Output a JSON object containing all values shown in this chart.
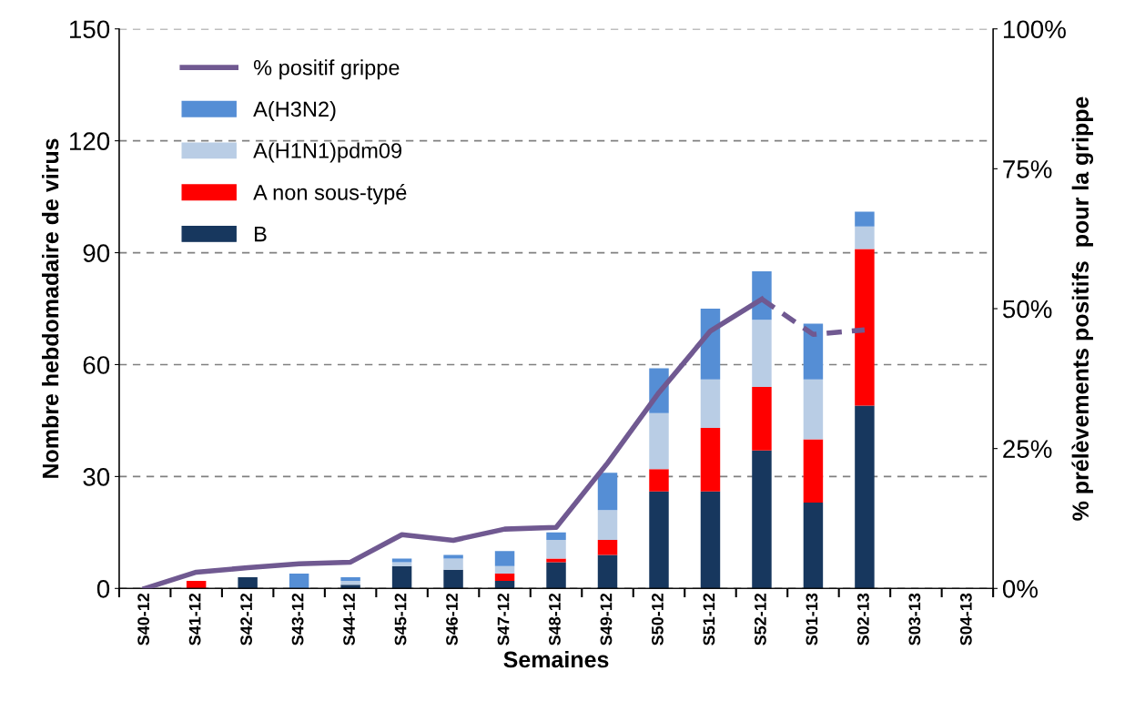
{
  "chart_data": {
    "type": "bar",
    "stacked": true,
    "xlabel": "Semaines",
    "ylabel": "Nombre hebdomadaire de virus",
    "y2label": "% prélèvements positifs  pour la grippe",
    "categories": [
      "S40-12",
      "S41-12",
      "S42-12",
      "S43-12",
      "S44-12",
      "S45-12",
      "S46-12",
      "S47-12",
      "S48-12",
      "S49-12",
      "S50-12",
      "S51-12",
      "S52-12",
      "S01-13",
      "S02-13",
      "S03-13",
      "S04-13"
    ],
    "series": [
      {
        "name": "B",
        "color": "#17375e",
        "values": [
          0,
          0,
          3,
          0,
          1,
          6,
          5,
          2,
          7,
          9,
          26,
          26,
          37,
          23,
          49,
          0,
          0
        ]
      },
      {
        "name": "A non sous-typé",
        "color": "#ff0000",
        "values": [
          0,
          2,
          0,
          0,
          0,
          0,
          0,
          2,
          1,
          4,
          6,
          17,
          17,
          17,
          42,
          0,
          0
        ]
      },
      {
        "name": "A(H1N1)pdm09",
        "color": "#b9cde5",
        "values": [
          0,
          0,
          0,
          0,
          1,
          1,
          3,
          2,
          5,
          8,
          15,
          13,
          18,
          16,
          6,
          0,
          0
        ]
      },
      {
        "name": "A(H3N2)",
        "color": "#558ed5",
        "values": [
          0,
          0,
          0,
          4,
          1,
          1,
          1,
          4,
          2,
          10,
          12,
          19,
          13,
          15,
          4,
          0,
          0
        ]
      },
      {
        "name": "% positif grippe",
        "type": "line",
        "axis": "y2",
        "color": "#705991",
        "line_style": "solid",
        "values": [
          0,
          2.9,
          3.7,
          4.4,
          4.7,
          9.6,
          8.6,
          10.6,
          10.9,
          22.4,
          35,
          46,
          51.7,
          null,
          null,
          null,
          null
        ]
      },
      {
        "type": "line",
        "axis": "y2",
        "color": "#705991",
        "line_style": "dashed",
        "values": [
          null,
          null,
          null,
          null,
          null,
          null,
          null,
          null,
          null,
          null,
          null,
          null,
          51.7,
          45.4,
          46.2,
          null,
          null
        ]
      }
    ],
    "ylim": [
      0,
      150
    ],
    "yticks": [
      0,
      30,
      60,
      90,
      120,
      150
    ],
    "y2lim": [
      0,
      100
    ],
    "y2ticks": [
      {
        "value": 0,
        "label": "0%"
      },
      {
        "value": 25,
        "label": "25%"
      },
      {
        "value": 50,
        "label": "50%"
      },
      {
        "value": 75,
        "label": "75%"
      },
      {
        "value": 100,
        "label": "100%"
      }
    ],
    "grid": "y",
    "legend": "top left",
    "marker": "none"
  }
}
